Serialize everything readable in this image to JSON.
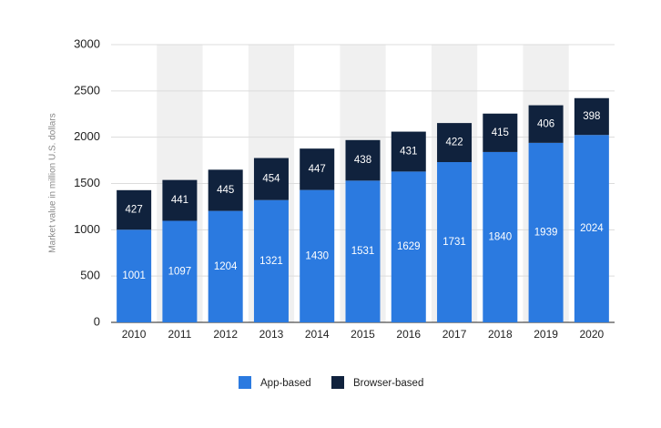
{
  "chart_data": {
    "type": "bar",
    "stacked": true,
    "y_label": "Market value in million U.S. dollars",
    "categories": [
      "2010",
      "2011",
      "2012",
      "2013",
      "2014",
      "2015",
      "2016",
      "2017",
      "2018",
      "2019",
      "2020"
    ],
    "series": [
      {
        "name": "App-based",
        "color": "#2b7ae0",
        "values": [
          1001,
          1097,
          1204,
          1321,
          1430,
          1531,
          1629,
          1731,
          1840,
          1939,
          2024
        ]
      },
      {
        "name": "Browser-based",
        "color": "#10223d",
        "values": [
          427,
          441,
          445,
          454,
          447,
          438,
          431,
          422,
          415,
          406,
          398
        ]
      }
    ],
    "ylim": [
      0,
      3000
    ],
    "yticks": [
      0,
      500,
      1000,
      1500,
      2000,
      2500,
      3000
    ],
    "grid": true
  }
}
